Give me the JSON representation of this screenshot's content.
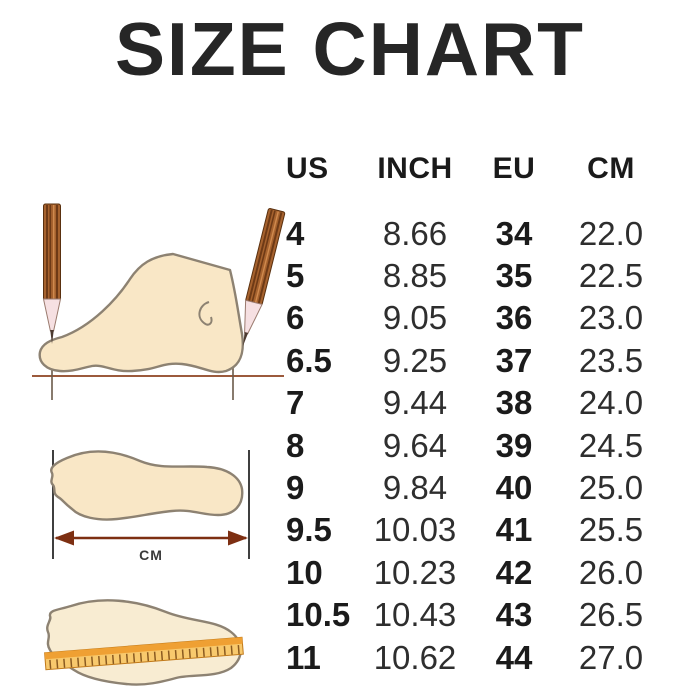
{
  "title": "SIZE CHART",
  "table": {
    "headers": [
      "US",
      "INCH",
      "EU",
      "CM"
    ],
    "rows": [
      [
        "4",
        "8.66",
        "34",
        "22.0"
      ],
      [
        "5",
        "8.85",
        "35",
        "22.5"
      ],
      [
        "6",
        "9.05",
        "36",
        "23.0"
      ],
      [
        "6.5",
        "9.25",
        "37",
        "23.5"
      ],
      [
        "7",
        "9.44",
        "38",
        "24.0"
      ],
      [
        "8",
        "9.64",
        "39",
        "24.5"
      ],
      [
        "9",
        "9.84",
        "40",
        "25.0"
      ],
      [
        "9.5",
        "10.03",
        "41",
        "25.5"
      ],
      [
        "10",
        "10.23",
        "42",
        "26.0"
      ],
      [
        "10.5",
        "10.43",
        "43",
        "26.5"
      ],
      [
        "11",
        "10.62",
        "44",
        "27.0"
      ]
    ]
  },
  "illustrations": {
    "foot_side_pencils": "foot-side-measure-icon",
    "footprint_arrow": "footprint-length-arrow-icon",
    "footprint_ruler": "footprint-ruler-icon",
    "measure_label": "CM"
  },
  "colors": {
    "background": "#ffffff",
    "title_text": "#262626",
    "table_bold_text": "#1b1b1b",
    "table_regular_text": "#2e2e2e",
    "foot_fill": "#f9e7c6",
    "foot_outline": "#8d8272",
    "pencil_brown": "#a6622e",
    "pencil_stripe": "#6e3a16",
    "baseline_brown": "#9c5a3c",
    "arrow_brown": "#7d2f12",
    "ruler_orange": "#f5b049",
    "ruler_tick": "#8a5a20"
  }
}
